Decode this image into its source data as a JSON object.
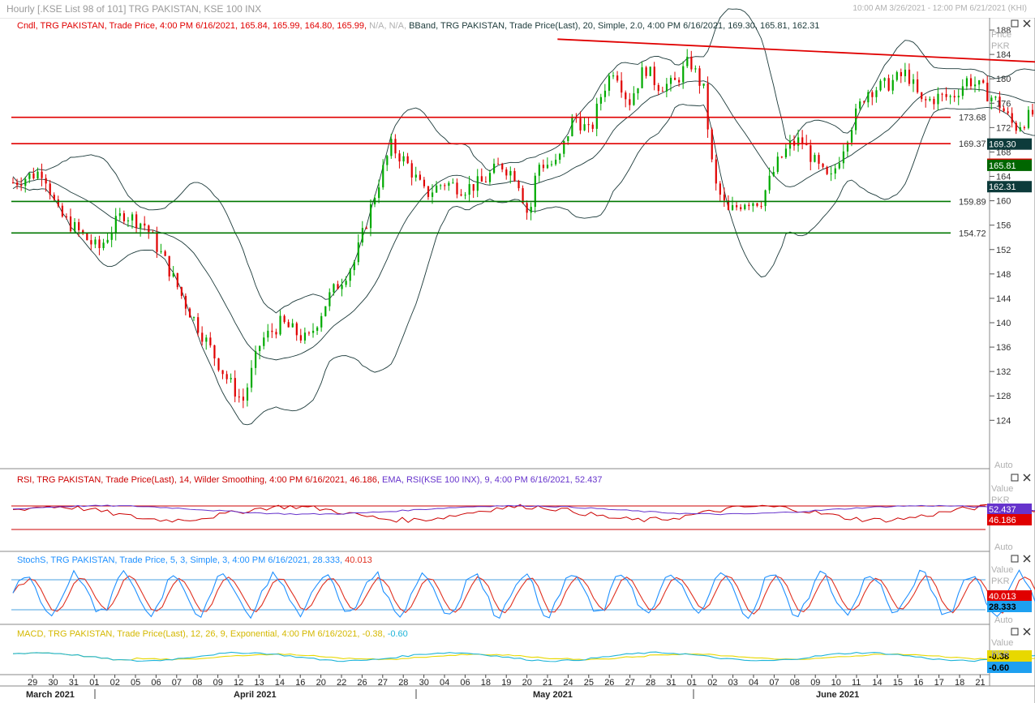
{
  "window": {
    "title": "Hourly [.KSE List 98 of 101] TRG PAKISTAN, KSE 100 INX",
    "date_range": "10:00 AM 3/26/2021 - 12:00 PM 6/21/2021 (KHI)"
  },
  "panes": {
    "price": {
      "legend_cndl": "Cndl, TRG PAKISTAN, Trade Price,  4:00 PM 6/16/2021, 165.84, 165.99, 164.80, 165.99, ",
      "legend_na": "N/A, N/A, ",
      "legend_bband": "BBand, TRG PAKISTAN, Trade Price(Last),  20, Simple, 2.0,  4:00 PM 6/16/2021, 169.30, 165.81, 162.31",
      "axis_title_1": "Price",
      "axis_title_2": "PKR",
      "auto": "Auto"
    },
    "rsi": {
      "legend_rsi": "RSI, TRG PAKISTAN, Trade Price(Last),  14, Wilder Smoothing,  4:00 PM 6/16/2021, 46.186, ",
      "legend_ema": "EMA, RSI(KSE 100 INX),  9,  4:00 PM 6/16/2021, 52.437",
      "axis_title_1": "Value",
      "axis_title_2": "PKR",
      "auto": "Auto"
    },
    "stoch": {
      "legend": "StochS, TRG PAKISTAN, Trade Price,  5, 3, Simple, 3,  4:00 PM 6/16/2021, 28.333, ",
      "legend_d": "40.013",
      "axis_title_1": "Value",
      "axis_title_2": "PKR",
      "auto": "Auto"
    },
    "macd": {
      "legend": "MACD, TRG PAKISTAN, Trade Price(Last),  12, 26, 9, Exponential,  4:00 PM 6/16/2021, -0.38, ",
      "legend_sig": "-0.60",
      "axis_title_1": "Value",
      "axis_title_2": "PKR"
    }
  },
  "colors": {
    "candle_up": "#00aa00",
    "candle_down": "#e00000",
    "bband": "#1c3a3a",
    "support": "#007700",
    "resistance": "#e00000",
    "rsi": "#cc0000",
    "rsi_ema": "#6633cc",
    "stoch_k": "#1e90ff",
    "stoch_d": "#e03020",
    "macd": "#1eb4d8",
    "macd_signal": "#e8d800",
    "label_red": "#e00000",
    "label_green": "#006600",
    "label_teal": "#0d3b3b",
    "label_purple": "#6633cc",
    "label_blue": "#1ea0f0",
    "label_yellow": "#e8d800"
  },
  "chart_data": [
    {
      "type": "candlestick",
      "title": "TRG PAKISTAN Hourly",
      "ylabel": "Price PKR",
      "ylim": [
        123,
        190
      ],
      "y_ticks": [
        124,
        128,
        132,
        136,
        140,
        144,
        148,
        152,
        156,
        160,
        164,
        168,
        172,
        176,
        180,
        184,
        188
      ],
      "x_ticks": [
        "29",
        "30",
        "31",
        "01",
        "02",
        "05",
        "06",
        "07",
        "08",
        "09",
        "12",
        "13",
        "14",
        "16",
        "20",
        "22",
        "26",
        "27",
        "28",
        "30",
        "04",
        "06",
        "18",
        "19",
        "20",
        "21",
        "24",
        "25",
        "26",
        "27",
        "28",
        "31",
        "01",
        "02",
        "03",
        "04",
        "07",
        "08",
        "09",
        "10",
        "11",
        "14",
        "15",
        "16",
        "17",
        "18",
        "21"
      ],
      "month_labels": [
        "March 2021",
        "April 2021",
        "May 2021",
        "June 2021"
      ],
      "close_path": [
        [
          0,
          163
        ],
        [
          1.5,
          165
        ],
        [
          2.2,
          158
        ],
        [
          3.2,
          155
        ],
        [
          4.2,
          152
        ],
        [
          5.4,
          158
        ],
        [
          6.5,
          156
        ],
        [
          7.5,
          150
        ],
        [
          8.5,
          143
        ],
        [
          9.5,
          137
        ],
        [
          10.5,
          131
        ],
        [
          11.3,
          127
        ],
        [
          12.2,
          137
        ],
        [
          13.2,
          140
        ],
        [
          14.5,
          137
        ],
        [
          15.5,
          144
        ],
        [
          16.8,
          150
        ],
        [
          17.8,
          161
        ],
        [
          18.6,
          169
        ],
        [
          19.4,
          166
        ],
        [
          20.3,
          161
        ],
        [
          21.2,
          163
        ],
        [
          22.2,
          162
        ],
        [
          23.1,
          163
        ],
        [
          24.0,
          166
        ],
        [
          24.8,
          164
        ],
        [
          25.4,
          157
        ],
        [
          25.8,
          166
        ],
        [
          26.8,
          166
        ],
        [
          27.6,
          174
        ],
        [
          28.4,
          171
        ],
        [
          29.0,
          178
        ],
        [
          29.6,
          182
        ],
        [
          30.3,
          176
        ],
        [
          31.1,
          182
        ],
        [
          31.7,
          179
        ],
        [
          32.5,
          179
        ],
        [
          33.3,
          183
        ],
        [
          34.0,
          178
        ],
        [
          34.5,
          163
        ],
        [
          35.2,
          158
        ],
        [
          36.0,
          160
        ],
        [
          36.8,
          160
        ],
        [
          37.6,
          166
        ],
        [
          38.2,
          169
        ],
        [
          38.8,
          170
        ],
        [
          39.5,
          166
        ],
        [
          40.2,
          163
        ],
        [
          41.2,
          172
        ],
        [
          42.0,
          178
        ],
        [
          43.0,
          179
        ],
        [
          44.0,
          181
        ],
        [
          44.7,
          176
        ],
        [
          45.5,
          177
        ],
        [
          46.2,
          177
        ],
        [
          47.0,
          180
        ],
        [
          47.8,
          178
        ],
        [
          48.5,
          176
        ],
        [
          49.3,
          172
        ],
        [
          50.1,
          174
        ],
        [
          50.8,
          176
        ],
        [
          51.6,
          176
        ],
        [
          52.4,
          174
        ],
        [
          53.2,
          170
        ],
        [
          54.0,
          169
        ],
        [
          54.6,
          170
        ],
        [
          55.4,
          172
        ],
        [
          56.2,
          172
        ],
        [
          56.9,
          174
        ],
        [
          57.6,
          174
        ],
        [
          58.3,
          177
        ],
        [
          58.9,
          180
        ],
        [
          59.6,
          181
        ],
        [
          60.5,
          178
        ],
        [
          61.2,
          178
        ],
        [
          62.1,
          176
        ],
        [
          63.0,
          175
        ],
        [
          63.8,
          175
        ],
        [
          64.6,
          175
        ],
        [
          65.4,
          175
        ],
        [
          66.2,
          174
        ],
        [
          67.0,
          175
        ],
        [
          67.8,
          181
        ],
        [
          68.5,
          180
        ],
        [
          69.2,
          178
        ],
        [
          70.0,
          177
        ],
        [
          70.8,
          179
        ],
        [
          71.6,
          178
        ],
        [
          72.4,
          177
        ],
        [
          73.2,
          175
        ],
        [
          74.0,
          172
        ],
        [
          74.8,
          166
        ],
        [
          75.5,
          163
        ],
        [
          76.3,
          163
        ],
        [
          77.0,
          163
        ],
        [
          77.8,
          167
        ],
        [
          78.6,
          170
        ],
        [
          79.3,
          171
        ],
        [
          80.1,
          170
        ],
        [
          80.8,
          169
        ],
        [
          81.6,
          166
        ],
        [
          82.4,
          165
        ],
        [
          83.2,
          161
        ],
        [
          84.0,
          167
        ],
        [
          84.6,
          168
        ],
        [
          85.2,
          167
        ],
        [
          85.8,
          168
        ],
        [
          86.3,
          167
        ],
        [
          86.8,
          166
        ]
      ],
      "series": [
        {
          "name": "BBand Upper",
          "last": 169.3
        },
        {
          "name": "BBand Middle",
          "last": 165.81
        },
        {
          "name": "BBand Lower",
          "last": 162.31
        }
      ],
      "last_candle": {
        "time": "4:00 PM 6/16/2021",
        "open": 165.84,
        "high": 165.99,
        "low": 164.8,
        "close": 165.99
      },
      "horizontal_lines": [
        {
          "value": 173.68,
          "color": "red",
          "label": "173.68"
        },
        {
          "value": 169.37,
          "color": "red",
          "label": "169.37"
        },
        {
          "value": 159.89,
          "color": "green",
          "label": "159.89"
        },
        {
          "value": 154.72,
          "color": "green",
          "label": "154.72"
        }
      ],
      "trend_lines": [
        {
          "from": [
            26.8,
            186.5
          ],
          "to": [
            86.8,
            177
          ]
        },
        {
          "from": [
            72.3,
            181
          ],
          "to": [
            87.5,
            168.5
          ]
        },
        {
          "from": [
            71.2,
            164
          ],
          "to": [
            87.5,
            151
          ]
        }
      ],
      "value_labels": [
        {
          "text": "169.30",
          "value": 169.3,
          "color": "teal"
        },
        {
          "text": "165.99",
          "value": 165.99,
          "color": "red"
        },
        {
          "text": "165.81",
          "value": 165.81,
          "color": "green"
        },
        {
          "text": "162.31",
          "value": 162.31,
          "color": "teal"
        }
      ]
    },
    {
      "type": "line",
      "title": "RSI 14",
      "series": [
        {
          "name": "RSI",
          "last": 46.186
        },
        {
          "name": "EMA RSI(KSE 100 INX)",
          "last": 52.437
        }
      ],
      "value_labels": [
        {
          "text": "52.437",
          "color": "purple"
        },
        {
          "text": "46.186",
          "color": "red"
        }
      ]
    },
    {
      "type": "line",
      "title": "Stochastic",
      "series": [
        {
          "name": "%K",
          "last": 28.333
        },
        {
          "name": "%D",
          "last": 40.013
        }
      ],
      "value_labels": [
        {
          "text": "40.013",
          "color": "red"
        },
        {
          "text": "28.333",
          "color": "blue"
        }
      ]
    },
    {
      "type": "line",
      "title": "MACD",
      "series": [
        {
          "name": "MACD",
          "last": -0.38
        },
        {
          "name": "Signal",
          "last": -0.6
        }
      ],
      "value_labels": [
        {
          "text": "-0.38",
          "color": "yellow"
        },
        {
          "text": "-0.60",
          "color": "blue"
        }
      ]
    }
  ]
}
